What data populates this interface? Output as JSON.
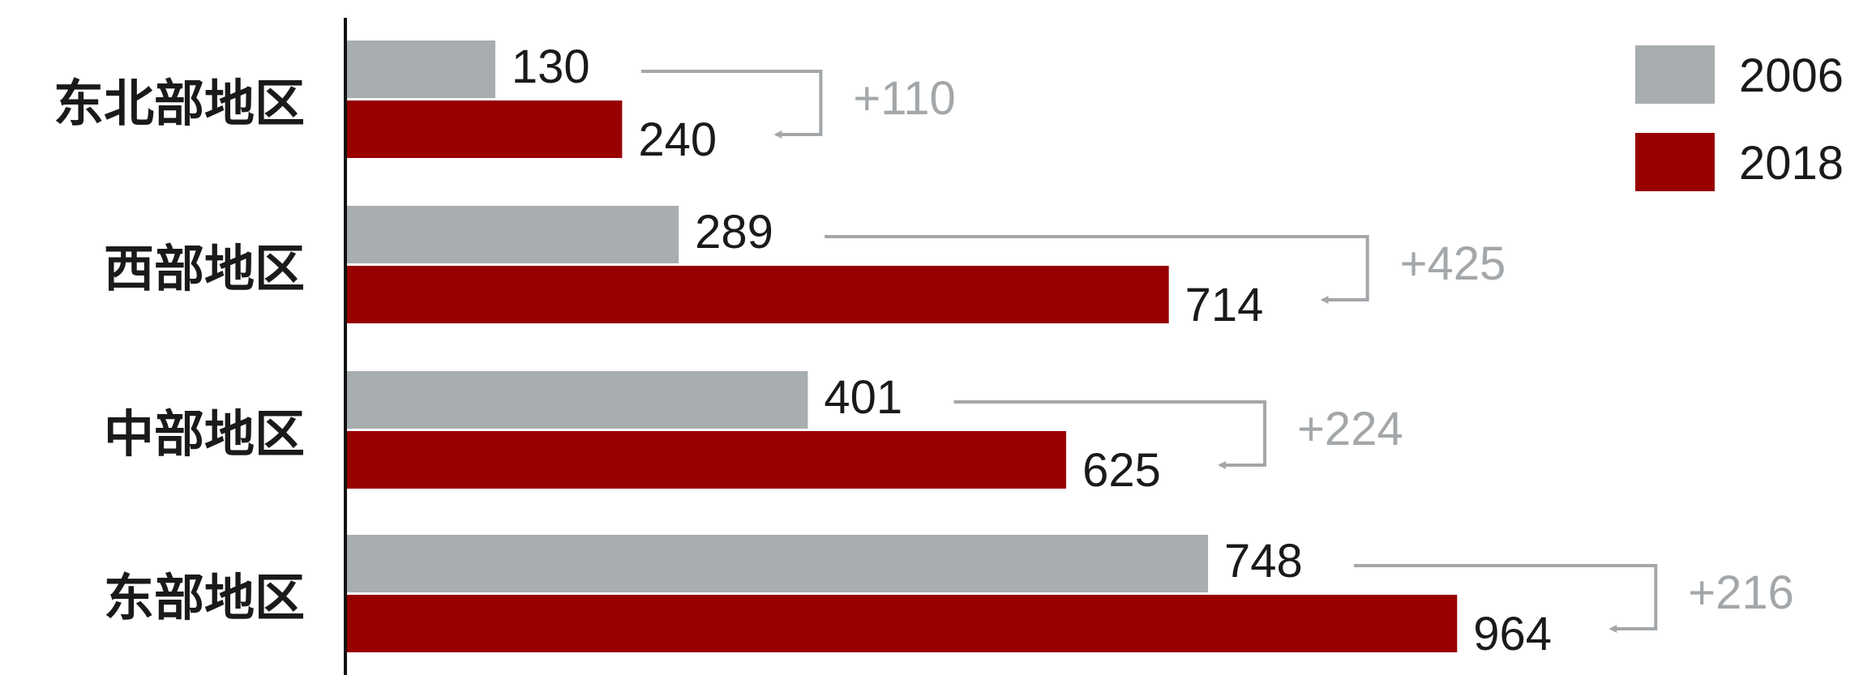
{
  "chart_data": {
    "type": "bar",
    "orientation": "horizontal",
    "categories": [
      "东北部地区",
      "西部地区",
      "中部地区",
      "东部地区"
    ],
    "series": [
      {
        "name": "2006",
        "color": "#a8adb0",
        "values": [
          130,
          289,
          401,
          748
        ]
      },
      {
        "name": "2018",
        "color": "#980000",
        "values": [
          240,
          714,
          625,
          964
        ]
      }
    ],
    "differences": [
      "+110",
      "+425",
      "+224",
      "+216"
    ],
    "xlim": [
      0,
      1000
    ],
    "grid": false,
    "legend_position": "top-right",
    "arrow_color": "#a3a7aa",
    "axis_color": "#111111"
  }
}
